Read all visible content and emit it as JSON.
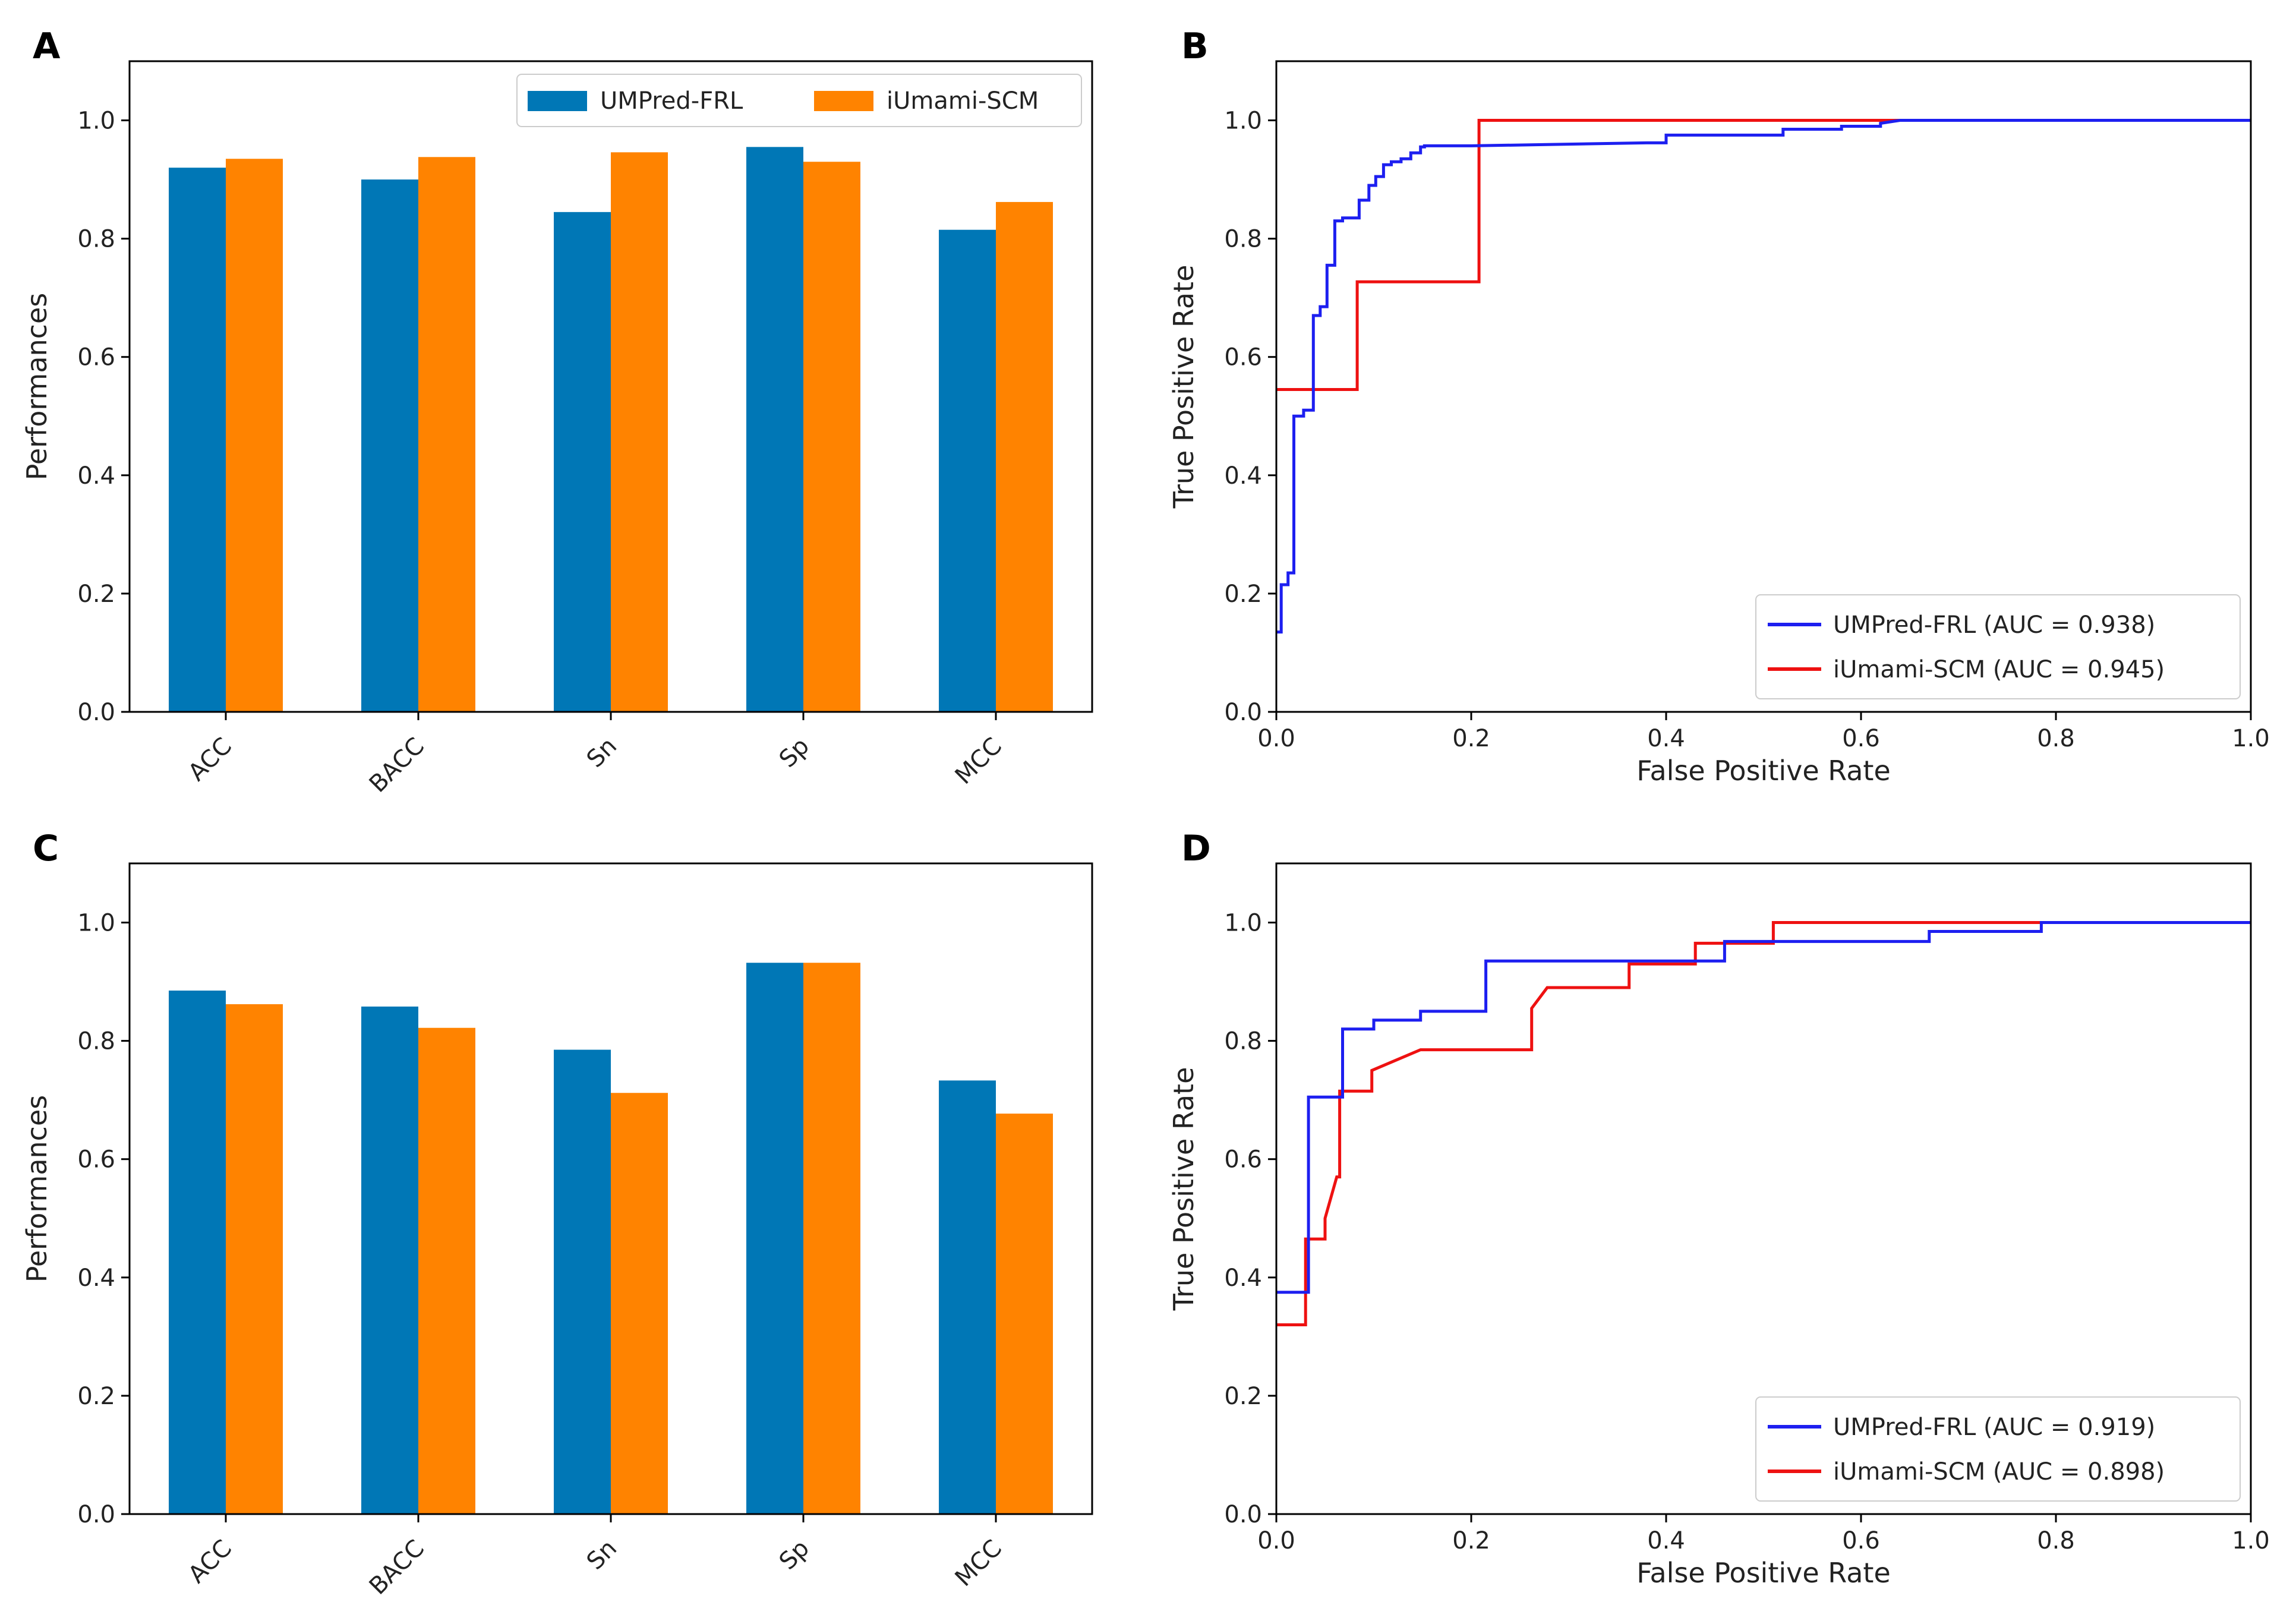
{
  "colors": {
    "umpred_bar": "#0077b6",
    "iumami_bar": "#ff8300",
    "umpred_line": "#1d1ff0",
    "iumami_line": "#ee1111"
  },
  "chart_data": [
    {
      "panel": "A",
      "type": "bar",
      "categories": [
        "ACC",
        "BACC",
        "Sn",
        "Sp",
        "MCC"
      ],
      "series": [
        {
          "name": "UMPred-FRL",
          "values": [
            0.92,
            0.9,
            0.845,
            0.955,
            0.815
          ]
        },
        {
          "name": "iUmami-SCM",
          "values": [
            0.935,
            0.938,
            0.946,
            0.93,
            0.862
          ]
        }
      ],
      "ylabel": "Performances",
      "xlabel": "",
      "ylim": [
        0,
        1.1
      ],
      "yticks": [
        "0.0",
        "0.2",
        "0.4",
        "0.6",
        "0.8",
        "1.0"
      ],
      "legend": "top-right"
    },
    {
      "panel": "B",
      "type": "line",
      "xlabel": "False Positive Rate",
      "ylabel": "True Positive Rate",
      "xlim": [
        0,
        1
      ],
      "ylim": [
        0,
        1.1
      ],
      "xticks": [
        "0.0",
        "0.2",
        "0.4",
        "0.6",
        "0.8",
        "1.0"
      ],
      "yticks": [
        "0.0",
        "0.2",
        "0.4",
        "0.6",
        "0.8",
        "1.0"
      ],
      "legend": "bottom-right",
      "series": [
        {
          "name": "UMPred-FRL (AUC = 0.938)",
          "x": [
            0,
            0.005,
            0.005,
            0.012,
            0.012,
            0.018,
            0.018,
            0.028,
            0.028,
            0.038,
            0.038,
            0.045,
            0.045,
            0.052,
            0.052,
            0.06,
            0.06,
            0.068,
            0.068,
            0.085,
            0.085,
            0.095,
            0.095,
            0.102,
            0.102,
            0.11,
            0.11,
            0.118,
            0.118,
            0.128,
            0.128,
            0.138,
            0.138,
            0.148,
            0.148,
            0.152,
            0.152,
            0.2,
            0.38,
            0.4,
            0.4,
            0.52,
            0.52,
            0.58,
            0.58,
            0.62,
            0.62,
            0.64,
            1.0
          ],
          "y": [
            0.135,
            0.135,
            0.215,
            0.215,
            0.235,
            0.235,
            0.5,
            0.5,
            0.51,
            0.51,
            0.67,
            0.67,
            0.685,
            0.685,
            0.755,
            0.755,
            0.83,
            0.83,
            0.835,
            0.835,
            0.865,
            0.865,
            0.89,
            0.89,
            0.905,
            0.905,
            0.925,
            0.925,
            0.93,
            0.93,
            0.935,
            0.935,
            0.945,
            0.945,
            0.955,
            0.955,
            0.957,
            0.957,
            0.962,
            0.962,
            0.975,
            0.975,
            0.985,
            0.985,
            0.99,
            0.99,
            0.995,
            1.0,
            1.0
          ]
        },
        {
          "name": "iUmami-SCM (AUC = 0.945)",
          "x": [
            0,
            0.083,
            0.083,
            0.208,
            0.208,
            1.0
          ],
          "y": [
            0.545,
            0.545,
            0.727,
            0.727,
            1.0,
            1.0
          ]
        }
      ]
    },
    {
      "panel": "C",
      "type": "bar",
      "categories": [
        "ACC",
        "BACC",
        "Sn",
        "Sp",
        "MCC"
      ],
      "series": [
        {
          "name": "UMPred-FRL",
          "values": [
            0.885,
            0.858,
            0.785,
            0.932,
            0.733
          ]
        },
        {
          "name": "iUmami-SCM",
          "values": [
            0.862,
            0.822,
            0.712,
            0.932,
            0.677
          ]
        }
      ],
      "ylabel": "Performances",
      "xlabel": "",
      "ylim": [
        0,
        1.1
      ],
      "yticks": [
        "0.0",
        "0.2",
        "0.4",
        "0.6",
        "0.8",
        "1.0"
      ]
    },
    {
      "panel": "D",
      "type": "line",
      "xlabel": "False Positive Rate",
      "ylabel": "True Positive Rate",
      "xlim": [
        0,
        1
      ],
      "ylim": [
        0,
        1.1
      ],
      "xticks": [
        "0.0",
        "0.2",
        "0.4",
        "0.6",
        "0.8",
        "1.0"
      ],
      "yticks": [
        "0.0",
        "0.2",
        "0.4",
        "0.6",
        "0.8",
        "1.0"
      ],
      "legend": "bottom-right",
      "series": [
        {
          "name": "UMPred-FRL (AUC = 0.919)",
          "x": [
            0,
            0.033,
            0.033,
            0.068,
            0.068,
            0.1,
            0.1,
            0.148,
            0.148,
            0.215,
            0.215,
            0.46,
            0.46,
            0.67,
            0.67,
            0.785,
            0.785,
            1.0
          ],
          "y": [
            0.375,
            0.375,
            0.705,
            0.705,
            0.82,
            0.82,
            0.835,
            0.835,
            0.85,
            0.85,
            0.935,
            0.935,
            0.968,
            0.968,
            0.985,
            0.985,
            1.0,
            1.0
          ]
        },
        {
          "name": "iUmami-SCM (AUC = 0.898)",
          "x": [
            0,
            0.03,
            0.03,
            0.05,
            0.05,
            0.062,
            0.065,
            0.065,
            0.098,
            0.098,
            0.148,
            0.175,
            0.262,
            0.262,
            0.278,
            0.362,
            0.362,
            0.43,
            0.43,
            0.51,
            0.51,
            1.0
          ],
          "y": [
            0.32,
            0.32,
            0.465,
            0.465,
            0.5,
            0.57,
            0.57,
            0.715,
            0.715,
            0.75,
            0.785,
            0.785,
            0.785,
            0.855,
            0.89,
            0.89,
            0.93,
            0.93,
            0.965,
            0.965,
            1.0,
            1.0
          ]
        }
      ]
    }
  ]
}
